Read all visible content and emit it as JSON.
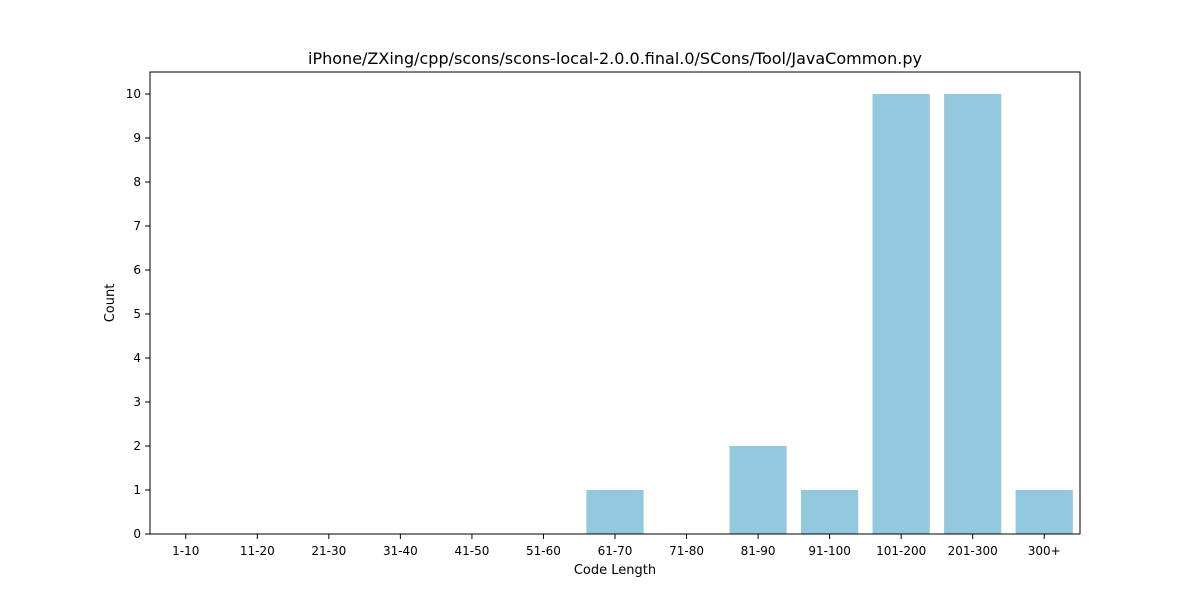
{
  "chart_data": {
    "type": "bar",
    "title": "iPhone/ZXing/cpp/scons/scons-local-2.0.0.final.0/SCons/Tool/JavaCommon.py",
    "xlabel": "Code Length",
    "ylabel": "Count",
    "categories": [
      "1-10",
      "11-20",
      "21-30",
      "31-40",
      "41-50",
      "51-60",
      "61-70",
      "71-80",
      "81-90",
      "91-100",
      "101-200",
      "201-300",
      "300+"
    ],
    "values": [
      0,
      0,
      0,
      0,
      0,
      0,
      1,
      0,
      2,
      1,
      10,
      10,
      1
    ],
    "ylim": [
      0,
      10.5
    ],
    "yticks": [
      0,
      1,
      2,
      3,
      4,
      5,
      6,
      7,
      8,
      9,
      10
    ],
    "bar_color": "#92c9de",
    "grid": false,
    "legend": "none"
  }
}
